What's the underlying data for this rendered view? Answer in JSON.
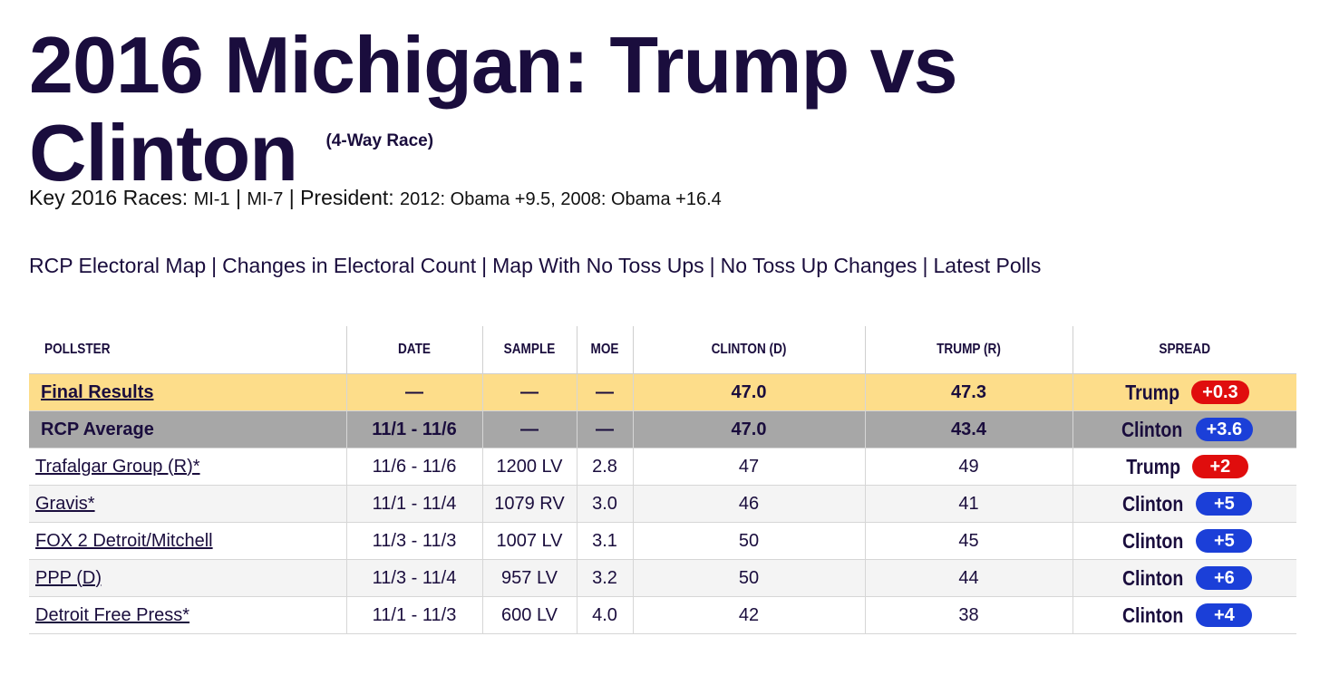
{
  "header": {
    "title": "2016 Michigan: Trump vs Clinton",
    "race_type": "(4-Way Race)"
  },
  "key_races": {
    "label": "Key 2016 Races:",
    "links": [
      "MI-1",
      "MI-7"
    ],
    "president_label": "President:",
    "president_history": "2012: Obama +9.5, 2008: Obama +16.4"
  },
  "nav_links": [
    "RCP Electoral Map",
    "Changes in Electoral Count",
    "Map With No Toss Ups",
    "No Toss Up Changes",
    "Latest Polls"
  ],
  "table": {
    "columns": [
      "POLLSTER",
      "DATE",
      "SAMPLE",
      "MOE",
      "CLINTON (D)",
      "TRUMP (R)",
      "SPREAD"
    ],
    "final": {
      "pollster": "Final Results",
      "date": "—",
      "sample": "—",
      "moe": "—",
      "clinton": "47.0",
      "trump": "47.3",
      "spread_candidate": "Trump",
      "spread_value": "+0.3",
      "spread_party": "r"
    },
    "average": {
      "pollster": "RCP Average",
      "date": "11/1 - 11/6",
      "sample": "—",
      "moe": "—",
      "clinton": "47.0",
      "trump": "43.4",
      "spread_candidate": "Clinton",
      "spread_value": "+3.6",
      "spread_party": "d"
    },
    "polls": [
      {
        "pollster": "Trafalgar Group (R)*",
        "date": "11/6 - 11/6",
        "sample": "1200 LV",
        "moe": "2.8",
        "clinton": "47",
        "trump": "49",
        "spread_candidate": "Trump",
        "spread_value": "+2",
        "spread_party": "r"
      },
      {
        "pollster": "Gravis*",
        "date": "11/1 - 11/4",
        "sample": "1079 RV",
        "moe": "3.0",
        "clinton": "46",
        "trump": "41",
        "spread_candidate": "Clinton",
        "spread_value": "+5",
        "spread_party": "d"
      },
      {
        "pollster": "FOX 2 Detroit/Mitchell",
        "date": "11/3 - 11/3",
        "sample": "1007 LV",
        "moe": "3.1",
        "clinton": "50",
        "trump": "45",
        "spread_candidate": "Clinton",
        "spread_value": "+5",
        "spread_party": "d"
      },
      {
        "pollster": "PPP (D)",
        "date": "11/3 - 11/4",
        "sample": "957 LV",
        "moe": "3.2",
        "clinton": "50",
        "trump": "44",
        "spread_candidate": "Clinton",
        "spread_value": "+6",
        "spread_party": "d"
      },
      {
        "pollster": "Detroit Free Press*",
        "date": "11/1 - 11/3",
        "sample": "600 LV",
        "moe": "4.0",
        "clinton": "42",
        "trump": "38",
        "spread_candidate": "Clinton",
        "spread_value": "+4",
        "spread_party": "d"
      }
    ]
  },
  "colors": {
    "title": "#1a0d3d",
    "final_row_bg": "#fddd8a",
    "average_row_bg": "#a7a7a7",
    "republican": "#e00d0d",
    "democrat": "#1b3fd8"
  }
}
